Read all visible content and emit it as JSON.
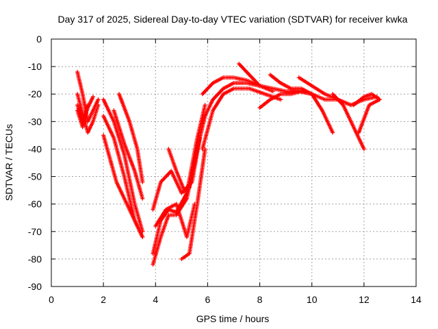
{
  "chart_data": {
    "type": "scatter",
    "title": "Day 317 of 2025, Sidereal Day-to-day VTEC variation (SDTVAR) for receiver kwka",
    "xlabel": "GPS time / hours",
    "ylabel": "SDTVAR / TECUs",
    "xlim": [
      0,
      14
    ],
    "ylim": [
      -90,
      0
    ],
    "xticks": [
      0,
      2,
      4,
      6,
      8,
      10,
      12,
      14
    ],
    "yticks": [
      0,
      -10,
      -20,
      -30,
      -40,
      -50,
      -60,
      -70,
      -80,
      -90
    ],
    "grid": true,
    "marker": "plus",
    "color": "#ff0000",
    "series": [
      {
        "x": [
          1.0,
          1.2,
          1.4,
          1.6,
          1.8
        ],
        "y": [
          -12,
          -20,
          -30,
          -26,
          -22
        ]
      },
      {
        "x": [
          1.0,
          1.2,
          1.4,
          1.6,
          1.8
        ],
        "y": [
          -20,
          -27,
          -34,
          -30,
          -24
        ]
      },
      {
        "x": [
          1.0,
          1.2,
          1.4,
          1.6
        ],
        "y": [
          -24,
          -30,
          -25,
          -21
        ]
      },
      {
        "x": [
          1.0,
          1.2,
          1.4
        ],
        "y": [
          -26,
          -32,
          -24
        ]
      },
      {
        "x": [
          2.0,
          2.4,
          2.8,
          3.2,
          3.5
        ],
        "y": [
          -22,
          -30,
          -42,
          -60,
          -70
        ]
      },
      {
        "x": [
          2.0,
          2.4,
          2.8,
          3.2,
          3.5
        ],
        "y": [
          -28,
          -36,
          -50,
          -66,
          -72
        ]
      },
      {
        "x": [
          2.0,
          2.5,
          3.0,
          3.5
        ],
        "y": [
          -35,
          -52,
          -62,
          -72
        ]
      },
      {
        "x": [
          2.6,
          3.0,
          3.3,
          3.5
        ],
        "y": [
          -20,
          -30,
          -40,
          -52
        ]
      },
      {
        "x": [
          2.4,
          2.8,
          3.2,
          3.5
        ],
        "y": [
          -26,
          -38,
          -48,
          -58
        ]
      },
      {
        "x": [
          3.9,
          4.2,
          4.5,
          4.8,
          5.2,
          5.6,
          5.9
        ],
        "y": [
          -82,
          -72,
          -64,
          -64,
          -58,
          -40,
          -28
        ]
      },
      {
        "x": [
          3.9,
          4.2,
          4.5,
          4.8,
          5.2,
          5.6,
          5.9
        ],
        "y": [
          -78,
          -66,
          -62,
          -63,
          -56,
          -36,
          -24
        ]
      },
      {
        "x": [
          3.9,
          4.2,
          4.6,
          5.0,
          5.3,
          5.6
        ],
        "y": [
          -62,
          -52,
          -48,
          -56,
          -54,
          -40
        ]
      },
      {
        "x": [
          4.0,
          4.4,
          4.8,
          5.2,
          5.5
        ],
        "y": [
          -68,
          -62,
          -60,
          -72,
          -60
        ]
      },
      {
        "x": [
          4.5,
          4.8,
          5.1,
          5.4,
          5.7
        ],
        "y": [
          -40,
          -48,
          -55,
          -52,
          -36
        ]
      },
      {
        "x": [
          5.0,
          5.3,
          5.6,
          5.9
        ],
        "y": [
          -80,
          -78,
          -60,
          -40
        ]
      },
      {
        "x": [
          5.8,
          6.2,
          6.6,
          7.0,
          7.5,
          8.0
        ],
        "y": [
          -20,
          -16,
          -14,
          -14,
          -15,
          -17
        ]
      },
      {
        "x": [
          5.8,
          6.2,
          6.6,
          7.0,
          7.5,
          8.0,
          8.5
        ],
        "y": [
          -30,
          -22,
          -18,
          -16,
          -16,
          -17,
          -19
        ]
      },
      {
        "x": [
          5.8,
          6.2,
          6.6,
          7.0,
          7.6,
          8.2,
          8.8
        ],
        "y": [
          -40,
          -26,
          -20,
          -18,
          -18,
          -20,
          -22
        ]
      },
      {
        "x": [
          7.2,
          7.6,
          8.0,
          8.5,
          9.0,
          9.5,
          10.0
        ],
        "y": [
          -9,
          -13,
          -17,
          -18,
          -19,
          -19,
          -20
        ]
      },
      {
        "x": [
          8.0,
          8.4,
          8.8,
          9.2,
          9.6,
          10.0,
          10.4,
          10.8
        ],
        "y": [
          -25,
          -22,
          -20,
          -20,
          -19,
          -20,
          -26,
          -34
        ]
      },
      {
        "x": [
          8.4,
          8.8,
          9.2,
          9.6,
          10.0,
          10.5,
          11.0,
          11.5
        ],
        "y": [
          -13,
          -16,
          -18,
          -18,
          -20,
          -22,
          -22,
          -24
        ]
      },
      {
        "x": [
          9.5,
          10.0,
          10.5,
          11.0,
          11.5,
          12.0,
          12.5
        ],
        "y": [
          -14,
          -17,
          -20,
          -22,
          -24,
          -22,
          -21
        ]
      },
      {
        "x": [
          10.8,
          11.2,
          11.6,
          12.0
        ],
        "y": [
          -20,
          -24,
          -32,
          -40
        ]
      },
      {
        "x": [
          11.8,
          12.2,
          12.6
        ],
        "y": [
          -34,
          -24,
          -22
        ]
      },
      {
        "x": [
          11.6,
          12.0,
          12.3,
          12.6
        ],
        "y": [
          -24,
          -21,
          -20,
          -22
        ]
      }
    ]
  }
}
